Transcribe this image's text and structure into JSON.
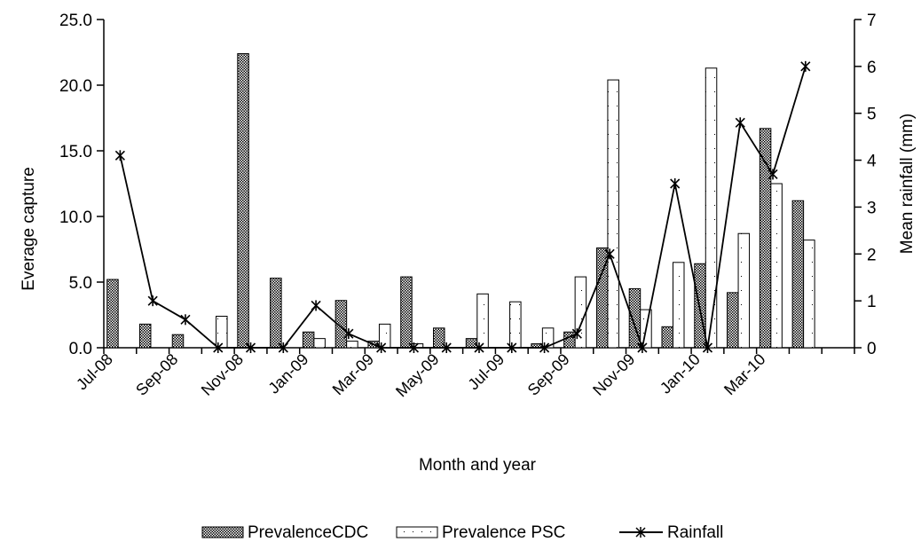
{
  "chart_data": {
    "type": "bar",
    "title": "",
    "xlabel": "Month and year",
    "ylabel": "Everage capture",
    "y2label": "Mean rainfall (mm)",
    "ylim": [
      0,
      25
    ],
    "y2lim": [
      0,
      7
    ],
    "yticks": [
      "0.0",
      "5.0",
      "10.0",
      "15.0",
      "20.0",
      "25.0"
    ],
    "y2ticks": [
      "0",
      "1",
      "2",
      "3",
      "4",
      "5",
      "6",
      "7"
    ],
    "categories": [
      "Jul-08",
      "Aug-08",
      "Sep-08",
      "Oct-08",
      "Nov-08",
      "Dec-08",
      "Jan-09",
      "Feb-09",
      "Mar-09",
      "Apr-09",
      "May-09",
      "Jun-09",
      "Jul-09",
      "Aug-09",
      "Sep-09",
      "Oct-09",
      "Nov-09",
      "Dec-09",
      "Jan-10",
      "Feb-10",
      "Mar-10",
      "Apr-10",
      "May-10"
    ],
    "x_tick_labels": [
      "Jul-08",
      "Sep-08",
      "Nov-08",
      "Jan-09",
      "Mar-09",
      "May-09",
      "Jul-09",
      "Sep-09",
      "Nov-09",
      "Jan-10",
      "Mar-10"
    ],
    "series": [
      {
        "name": "PrevalenceCDC",
        "type": "bar",
        "axis": "left",
        "values": [
          5.2,
          1.8,
          1.0,
          0.0,
          22.4,
          5.3,
          1.2,
          3.6,
          0.5,
          5.4,
          1.5,
          0.7,
          0.0,
          0.3,
          1.2,
          7.6,
          4.5,
          1.6,
          6.4,
          4.2,
          16.7,
          11.2,
          null
        ],
        "color": "#555555"
      },
      {
        "name": "Prevalence PSC",
        "type": "bar",
        "axis": "left",
        "values": [
          0.0,
          0.0,
          0.0,
          2.4,
          0.0,
          0.0,
          0.7,
          0.5,
          1.8,
          0.3,
          0.0,
          4.1,
          3.5,
          1.5,
          5.4,
          20.4,
          2.9,
          6.5,
          21.3,
          8.7,
          12.5,
          8.2,
          null
        ],
        "color": "#ffffff"
      },
      {
        "name": "Rainfall",
        "type": "line",
        "axis": "right",
        "values": [
          4.1,
          1.0,
          0.6,
          0.0,
          0.0,
          0.0,
          0.9,
          0.3,
          0.0,
          0.0,
          0.0,
          0.0,
          0.0,
          0.0,
          0.3,
          2.0,
          0.0,
          3.5,
          0.0,
          4.8,
          3.7,
          6.0,
          null
        ],
        "color": "#000000"
      }
    ],
    "legend": {
      "position": "bottom",
      "items": [
        "PrevalenceCDC",
        "Prevalence PSC",
        "Rainfall"
      ]
    },
    "grid": false
  }
}
